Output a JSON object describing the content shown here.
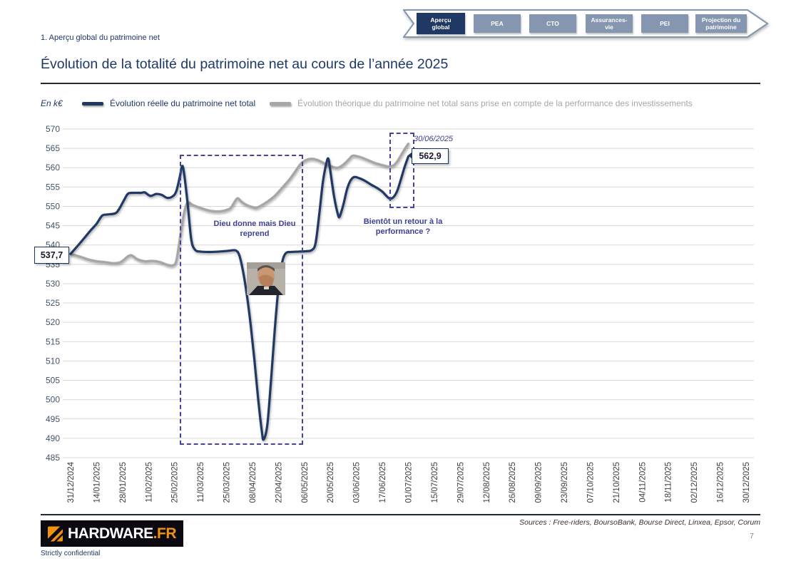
{
  "page": {
    "breadcrumb": "1. Aperçu global du patrimoine net",
    "title": "Évolution de la totalité du patrimoine net au cours de l’année 2025",
    "footer": {
      "sources": "Sources : Free-riders, BoursoBank, Bourse Direct, Linxea, Epsor, Corum",
      "page_number": "7",
      "confidential": "Strictly confidential",
      "logo": {
        "text_white": "HARDWARE",
        "text_orange": ".FR"
      }
    }
  },
  "nav_tabs": {
    "items": [
      {
        "label": "Aperçu global",
        "active": true
      },
      {
        "label": "PEA",
        "active": false
      },
      {
        "label": "CTO",
        "active": false
      },
      {
        "label": "Assurances-vie",
        "active": false
      },
      {
        "label": "PEI",
        "active": false
      },
      {
        "label": "Projection du patrimoine",
        "active": false
      }
    ],
    "colors": {
      "active": "#1F3864",
      "inactive": "#8496B0"
    }
  },
  "chart_data": {
    "type": "line",
    "unit_label": "En k€",
    "ylim": [
      485,
      570
    ],
    "y_ticks": [
      570,
      565,
      560,
      555,
      550,
      545,
      540,
      535,
      530,
      525,
      520,
      515,
      510,
      505,
      500,
      495,
      490,
      485
    ],
    "x_tick_labels": [
      "31/12/2024",
      "14/01/2025",
      "28/01/2025",
      "11/02/2025",
      "25/02/2025",
      "11/03/2025",
      "25/03/2025",
      "08/04/2025",
      "22/04/2025",
      "06/05/2025",
      "20/05/2025",
      "03/06/2025",
      "17/06/2025",
      "01/07/2025",
      "15/07/2025",
      "29/07/2025",
      "12/08/2025",
      "26/08/2025",
      "09/09/2025",
      "23/09/2025",
      "07/10/2025",
      "21/10/2025",
      "04/11/2025",
      "18/11/2025",
      "02/12/2025",
      "16/12/2025",
      "30/12/2025"
    ],
    "days_per_tick": 14,
    "grid": true,
    "legend_position": "top",
    "series": [
      {
        "name": "Évolution réelle du patrimoine net total",
        "color": "#1F3864",
        "points": [
          [
            0,
            537.7
          ],
          [
            4,
            539.9
          ],
          [
            7,
            541.6
          ],
          [
            11,
            543.9
          ],
          [
            14,
            545.5
          ],
          [
            17,
            547.6
          ],
          [
            20,
            547.9
          ],
          [
            24,
            548.2
          ],
          [
            26,
            549.2
          ],
          [
            29,
            551.8
          ],
          [
            31,
            553.3
          ],
          [
            34,
            553.5
          ],
          [
            38,
            553.5
          ],
          [
            40,
            553.6
          ],
          [
            43,
            552.7
          ],
          [
            46,
            553.2
          ],
          [
            49,
            553.0
          ],
          [
            52,
            552.2
          ],
          [
            55,
            552.6
          ],
          [
            57,
            554.0
          ],
          [
            59,
            558.0
          ],
          [
            60,
            560.4
          ],
          [
            61,
            559.0
          ],
          [
            63,
            551.0
          ],
          [
            65,
            541.5
          ],
          [
            67,
            538.8
          ],
          [
            70,
            538.3
          ],
          [
            75,
            538.2
          ],
          [
            80,
            538.3
          ],
          [
            85,
            538.5
          ],
          [
            89,
            538.6
          ],
          [
            91,
            537.2
          ],
          [
            93,
            533.0
          ],
          [
            95,
            527.0
          ],
          [
            97,
            519.5
          ],
          [
            99,
            510.5
          ],
          [
            101,
            500.5
          ],
          [
            103,
            492.0
          ],
          [
            104,
            489.7
          ],
          [
            106,
            493.5
          ],
          [
            108,
            505.0
          ],
          [
            110,
            518.0
          ],
          [
            112,
            529.0
          ],
          [
            114,
            535.5
          ],
          [
            116,
            537.9
          ],
          [
            119,
            538.2
          ],
          [
            123,
            538.3
          ],
          [
            127,
            538.4
          ],
          [
            130,
            538.7
          ],
          [
            132,
            540.5
          ],
          [
            134,
            548.0
          ],
          [
            136,
            556.5
          ],
          [
            138,
            561.5
          ],
          [
            139,
            562.2
          ],
          [
            140,
            559.0
          ],
          [
            142,
            552.5
          ],
          [
            144,
            548.0
          ],
          [
            145,
            547.4
          ],
          [
            147,
            550.5
          ],
          [
            149,
            554.5
          ],
          [
            151,
            556.8
          ],
          [
            153,
            557.6
          ],
          [
            156,
            557.2
          ],
          [
            159,
            556.5
          ],
          [
            162,
            555.6
          ],
          [
            165,
            554.8
          ],
          [
            168,
            553.8
          ],
          [
            170,
            552.8
          ],
          [
            172,
            552.0
          ],
          [
            174,
            552.4
          ],
          [
            176,
            554.0
          ],
          [
            178,
            557.0
          ],
          [
            180,
            560.2
          ],
          [
            182,
            562.9
          ]
        ]
      },
      {
        "name": "Évolution théorique du patrimoine net total sans prise en compte de la performance des investissements",
        "color": "#A6A6A6",
        "points": [
          [
            0,
            537.7
          ],
          [
            5,
            537.0
          ],
          [
            10,
            536.2
          ],
          [
            14,
            535.8
          ],
          [
            18,
            535.6
          ],
          [
            23,
            535.3
          ],
          [
            27,
            535.6
          ],
          [
            31,
            537.1
          ],
          [
            33,
            537.3
          ],
          [
            36,
            536.3
          ],
          [
            40,
            535.8
          ],
          [
            44,
            535.9
          ],
          [
            48,
            535.6
          ],
          [
            52,
            534.9
          ],
          [
            55,
            534.7
          ],
          [
            57,
            536.0
          ],
          [
            59,
            542.0
          ],
          [
            61,
            548.0
          ],
          [
            63,
            550.9
          ],
          [
            66,
            550.3
          ],
          [
            70,
            549.6
          ],
          [
            74,
            549.0
          ],
          [
            78,
            548.7
          ],
          [
            82,
            548.8
          ],
          [
            86,
            549.5
          ],
          [
            88,
            550.9
          ],
          [
            90,
            552.1
          ],
          [
            92,
            551.2
          ],
          [
            95,
            550.3
          ],
          [
            98,
            549.8
          ],
          [
            100,
            549.6
          ],
          [
            103,
            550.3
          ],
          [
            106,
            551.2
          ],
          [
            110,
            552.7
          ],
          [
            114,
            554.8
          ],
          [
            118,
            557.0
          ],
          [
            121,
            559.0
          ],
          [
            124,
            561.0
          ],
          [
            127,
            562.0
          ],
          [
            130,
            562.3
          ],
          [
            133,
            562.0
          ],
          [
            136,
            561.3
          ],
          [
            139,
            560.6
          ],
          [
            142,
            560.1
          ],
          [
            144,
            560.0
          ],
          [
            147,
            560.8
          ],
          [
            150,
            562.2
          ],
          [
            152,
            563.1
          ],
          [
            155,
            562.9
          ],
          [
            158,
            562.4
          ],
          [
            161,
            561.8
          ],
          [
            164,
            561.2
          ],
          [
            167,
            560.8
          ],
          [
            170,
            560.4
          ],
          [
            172,
            560.3
          ],
          [
            174,
            560.6
          ],
          [
            176,
            561.6
          ],
          [
            178,
            563.2
          ],
          [
            180,
            564.8
          ],
          [
            182,
            566.2
          ]
        ]
      }
    ],
    "annotations": {
      "start_value_label": "537,7",
      "end_value_label": "562,9",
      "end_date_label": "30/06/2025",
      "callout_crash": "Dieu donne mais Dieu reprend",
      "callout_recovery": "Bientôt un retour à la performance ?"
    },
    "highlight_boxes": [
      {
        "name": "crash-period",
        "days": [
          59,
          124
        ],
        "values": [
          489.0,
          563.3
        ]
      },
      {
        "name": "recovery-period",
        "days": [
          172,
          184
        ],
        "values": [
          550.3,
          569.0
        ]
      }
    ]
  }
}
